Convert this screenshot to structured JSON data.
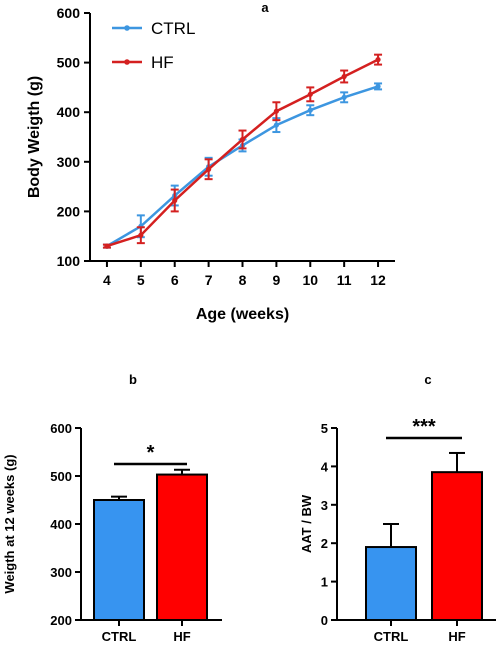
{
  "chart_data": [
    {
      "panel": "a",
      "type": "line",
      "xlabel": "Age (weeks)",
      "ylabel": "Body Weigth (g)",
      "xlim": [
        3.5,
        12.5
      ],
      "ylim": [
        100,
        600
      ],
      "x_ticks": [
        4,
        5,
        6,
        7,
        8,
        9,
        10,
        11,
        12
      ],
      "y_ticks": [
        100,
        200,
        300,
        400,
        500,
        600
      ],
      "legend_position": "top-left",
      "x": [
        4,
        5,
        6,
        7,
        8,
        9,
        10,
        11,
        12
      ],
      "series": [
        {
          "name": "CTRL",
          "color": "#3d96e0",
          "values": [
            130,
            170,
            232,
            290,
            333,
            374,
            404,
            430,
            452
          ],
          "errors": [
            3,
            22,
            20,
            18,
            12,
            14,
            10,
            10,
            6
          ]
        },
        {
          "name": "HF",
          "color": "#d42020",
          "values": [
            130,
            152,
            222,
            285,
            345,
            402,
            436,
            472,
            506
          ],
          "errors": [
            3,
            16,
            22,
            20,
            18,
            18,
            14,
            12,
            10
          ]
        }
      ]
    },
    {
      "panel": "b",
      "type": "bar",
      "ylabel": "Weigth at 12 weeks (g)",
      "ylim": [
        200,
        600
      ],
      "y_ticks": [
        200,
        300,
        400,
        500,
        600
      ],
      "categories": [
        "CTRL",
        "HF"
      ],
      "values": [
        450,
        503
      ],
      "errors": [
        7,
        10
      ],
      "colors": [
        "#3794f0",
        "#ff0000"
      ],
      "significance": "*"
    },
    {
      "panel": "c",
      "type": "bar",
      "ylabel": "AAT / BW",
      "ylim": [
        0,
        5
      ],
      "y_ticks": [
        0,
        1,
        2,
        3,
        4,
        5
      ],
      "categories": [
        "CTRL",
        "HF"
      ],
      "values": [
        1.9,
        3.85
      ],
      "errors": [
        0.6,
        0.5
      ],
      "colors": [
        "#3794f0",
        "#ff0000"
      ],
      "significance": "***"
    }
  ]
}
